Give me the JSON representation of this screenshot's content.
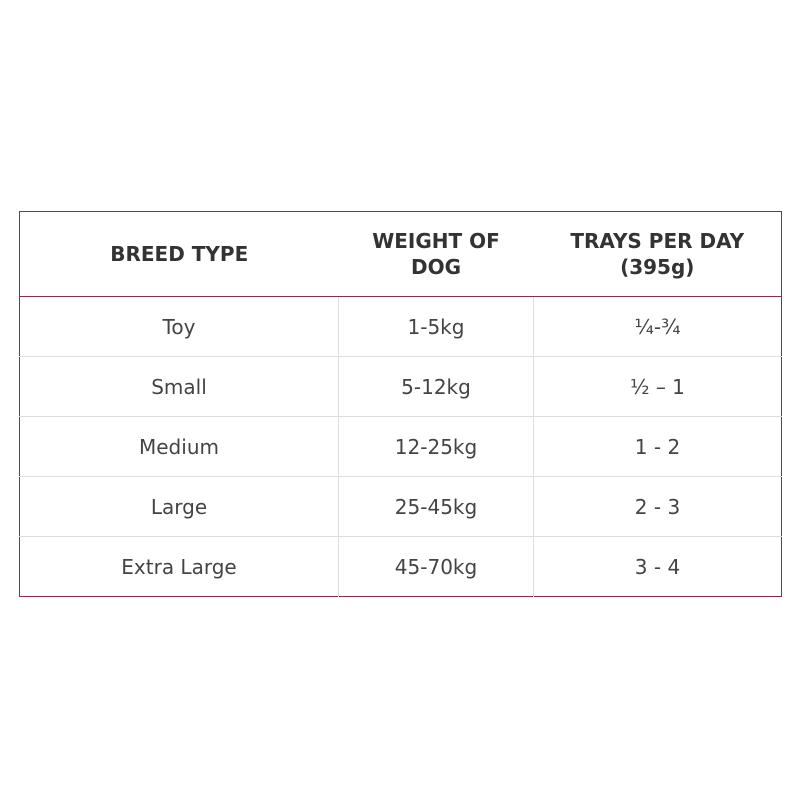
{
  "table": {
    "header": [
      "BREED TYPE",
      "WEIGHT OF DOG",
      "TRAYS PER DAY (395g)"
    ],
    "rows": [
      [
        "Toy",
        "1-5kg",
        "¼-¾"
      ],
      [
        "Small",
        "5-12kg",
        "½ – 1"
      ],
      [
        "Medium",
        "12-25kg",
        "1 - 2"
      ],
      [
        "Large",
        "25-45kg",
        "2 - 3"
      ],
      [
        "Extra Large",
        "45-70kg",
        "3 - 4"
      ]
    ]
  }
}
